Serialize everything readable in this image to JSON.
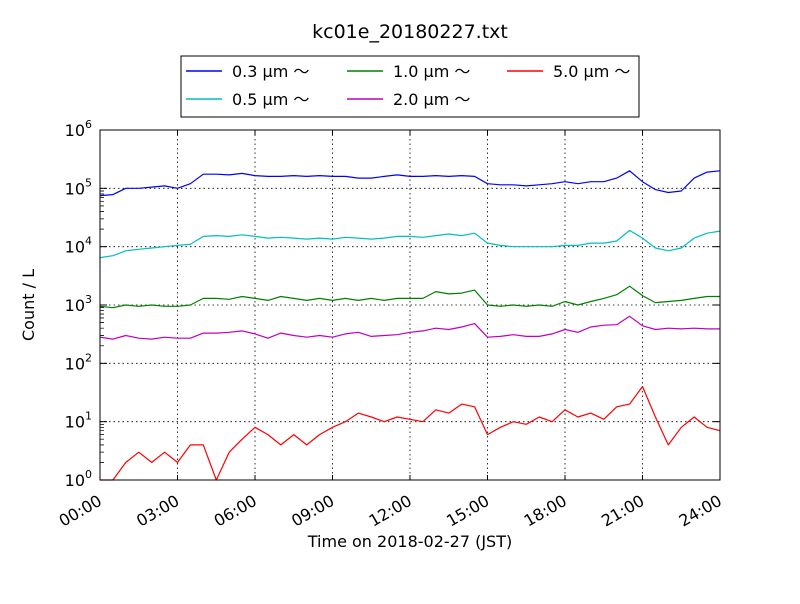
{
  "chart_data": {
    "type": "line",
    "title": "kc01e_20180227.txt",
    "xlabel": "Time on 2018-02-27 (JST)",
    "ylabel": "Count / L",
    "yscale": "log",
    "xlim": [
      0,
      24
    ],
    "ylim": [
      1,
      1000000
    ],
    "x_ticks": [
      {
        "value": 0,
        "label": "00:00"
      },
      {
        "value": 3,
        "label": "03:00"
      },
      {
        "value": 6,
        "label": "06:00"
      },
      {
        "value": 9,
        "label": "09:00"
      },
      {
        "value": 12,
        "label": "12:00"
      },
      {
        "value": 15,
        "label": "15:00"
      },
      {
        "value": 18,
        "label": "18:00"
      },
      {
        "value": 21,
        "label": "21:00"
      },
      {
        "value": 24,
        "label": "24:00"
      }
    ],
    "y_ticks": [
      {
        "value": 1,
        "base": "10",
        "exp": "0"
      },
      {
        "value": 10,
        "base": "10",
        "exp": "1"
      },
      {
        "value": 100,
        "base": "10",
        "exp": "2"
      },
      {
        "value": 1000,
        "base": "10",
        "exp": "3"
      },
      {
        "value": 10000,
        "base": "10",
        "exp": "4"
      },
      {
        "value": 100000,
        "base": "10",
        "exp": "5"
      },
      {
        "value": 1000000,
        "base": "10",
        "exp": "6"
      }
    ],
    "grid": true,
    "legend_position": "top",
    "series": [
      {
        "name": "0.3 μm ～",
        "color": "#0000ff",
        "x": [
          0,
          0.5,
          1,
          1.5,
          2,
          2.5,
          3,
          3.5,
          4,
          4.5,
          5,
          5.5,
          6,
          6.5,
          7,
          7.5,
          8,
          8.5,
          9,
          9.5,
          10,
          10.5,
          11,
          11.5,
          12,
          12.5,
          13,
          13.5,
          14,
          14.5,
          15,
          15.5,
          16,
          16.5,
          17,
          17.5,
          18,
          18.5,
          19,
          19.5,
          20,
          20.5,
          21,
          21.5,
          22,
          22.5,
          23,
          23.5,
          24
        ],
        "y": [
          75000,
          78000,
          100000,
          100000,
          105000,
          110000,
          100000,
          120000,
          175000,
          175000,
          170000,
          180000,
          165000,
          160000,
          160000,
          165000,
          160000,
          165000,
          160000,
          160000,
          150000,
          150000,
          160000,
          170000,
          160000,
          160000,
          165000,
          160000,
          165000,
          160000,
          120000,
          115000,
          115000,
          110000,
          115000,
          120000,
          130000,
          120000,
          130000,
          130000,
          150000,
          200000,
          130000,
          95000,
          85000,
          90000,
          150000,
          190000,
          200000
        ]
      },
      {
        "name": "0.5 μm ～",
        "color": "#00bfbf",
        "x": [
          0,
          0.5,
          1,
          1.5,
          2,
          2.5,
          3,
          3.5,
          4,
          4.5,
          5,
          5.5,
          6,
          6.5,
          7,
          7.5,
          8,
          8.5,
          9,
          9.5,
          10,
          10.5,
          11,
          11.5,
          12,
          12.5,
          13,
          13.5,
          14,
          14.5,
          15,
          15.5,
          16,
          16.5,
          17,
          17.5,
          18,
          18.5,
          19,
          19.5,
          20,
          20.5,
          21,
          21.5,
          22,
          22.5,
          23,
          23.5,
          24
        ],
        "y": [
          6500,
          7000,
          8500,
          9000,
          9500,
          10000,
          10500,
          11000,
          15000,
          15500,
          15000,
          16000,
          15000,
          14000,
          14500,
          14000,
          13500,
          14000,
          13500,
          14500,
          14000,
          13500,
          14000,
          15000,
          15000,
          14500,
          15500,
          16500,
          15500,
          17000,
          11500,
          10500,
          10000,
          10000,
          10000,
          10000,
          10500,
          10500,
          11500,
          11500,
          12500,
          19000,
          14000,
          9500,
          8500,
          9500,
          14000,
          17000,
          18500
        ]
      },
      {
        "name": "1.0 μm ～",
        "color": "#008000",
        "x": [
          0,
          0.5,
          1,
          1.5,
          2,
          2.5,
          3,
          3.5,
          4,
          4.5,
          5,
          5.5,
          6,
          6.5,
          7,
          7.5,
          8,
          8.5,
          9,
          9.5,
          10,
          10.5,
          11,
          11.5,
          12,
          12.5,
          13,
          13.5,
          14,
          14.5,
          15,
          15.5,
          16,
          16.5,
          17,
          17.5,
          18,
          18.5,
          19,
          19.5,
          20,
          20.5,
          21,
          21.5,
          22,
          22.5,
          23,
          23.5,
          24
        ],
        "y": [
          950,
          900,
          1000,
          950,
          1000,
          950,
          950,
          1000,
          1300,
          1300,
          1250,
          1400,
          1300,
          1200,
          1400,
          1300,
          1200,
          1300,
          1200,
          1300,
          1200,
          1300,
          1200,
          1300,
          1300,
          1300,
          1700,
          1550,
          1600,
          1800,
          1000,
          950,
          1000,
          950,
          1000,
          950,
          1150,
          1000,
          1150,
          1300,
          1500,
          2100,
          1450,
          1100,
          1150,
          1200,
          1300,
          1400,
          1400
        ]
      },
      {
        "name": "2.0 μm ～",
        "color": "#bf00bf",
        "x": [
          0,
          0.5,
          1,
          1.5,
          2,
          2.5,
          3,
          3.5,
          4,
          4.5,
          5,
          5.5,
          6,
          6.5,
          7,
          7.5,
          8,
          8.5,
          9,
          9.5,
          10,
          10.5,
          11,
          11.5,
          12,
          12.5,
          13,
          13.5,
          14,
          14.5,
          15,
          15.5,
          16,
          16.5,
          17,
          17.5,
          18,
          18.5,
          19,
          19.5,
          20,
          20.5,
          21,
          21.5,
          22,
          22.5,
          23,
          23.5,
          24
        ],
        "y": [
          280,
          260,
          300,
          270,
          260,
          280,
          270,
          270,
          330,
          330,
          340,
          360,
          320,
          270,
          330,
          300,
          280,
          300,
          280,
          320,
          340,
          290,
          300,
          310,
          340,
          360,
          400,
          380,
          420,
          480,
          280,
          290,
          310,
          290,
          290,
          320,
          380,
          340,
          420,
          450,
          460,
          640,
          440,
          380,
          400,
          390,
          400,
          390,
          390
        ]
      },
      {
        "name": "5.0 μm ～",
        "color": "#ff0000",
        "x": [
          0,
          0.5,
          1,
          1.5,
          2,
          2.5,
          3,
          3.5,
          4,
          4.5,
          5,
          5.5,
          6,
          6.5,
          7,
          7.5,
          8,
          8.5,
          9,
          9.5,
          10,
          10.5,
          11,
          11.5,
          12,
          12.5,
          13,
          13.5,
          14,
          14.5,
          15,
          15.5,
          16,
          16.5,
          17,
          17.5,
          18,
          18.5,
          19,
          19.5,
          20,
          20.5,
          21,
          21.5,
          22,
          22.5,
          23,
          23.5,
          24
        ],
        "y": [
          1,
          1,
          2,
          3,
          2,
          3,
          2,
          4,
          4,
          1,
          3,
          5,
          8,
          6,
          4,
          6,
          4,
          6,
          8,
          10,
          14,
          12,
          10,
          12,
          11,
          10,
          16,
          14,
          20,
          18,
          6,
          8,
          10,
          9,
          12,
          10,
          16,
          12,
          14,
          11,
          18,
          20,
          40,
          12,
          4,
          8,
          12,
          8,
          7
        ]
      }
    ]
  }
}
